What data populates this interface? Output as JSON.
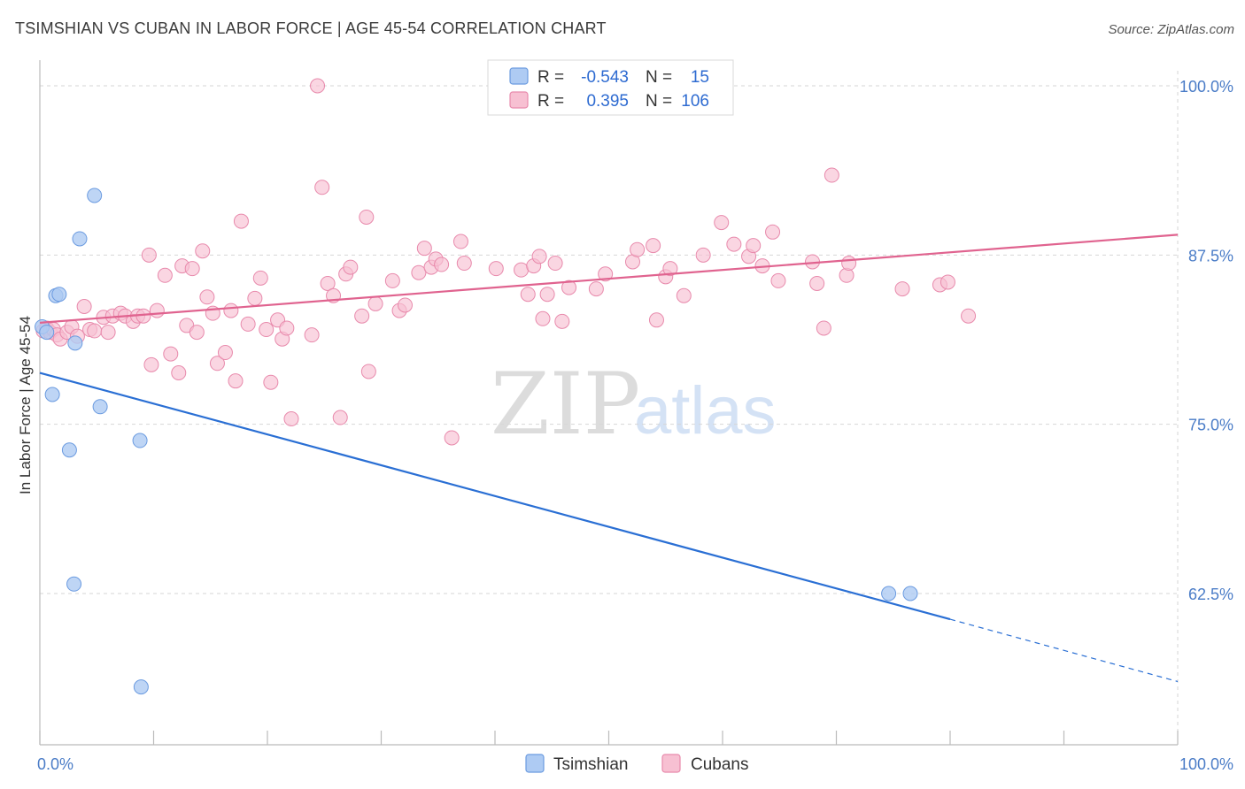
{
  "title": "TSIMSHIAN VS CUBAN IN LABOR FORCE | AGE 45-54 CORRELATION CHART",
  "source": "Source: ZipAtlas.com",
  "watermark": {
    "zip": "ZIP",
    "atlas": "atlas"
  },
  "colors": {
    "tsimshian_fill": "#aecbf3",
    "tsimshian_stroke": "#6b9be0",
    "tsimshian_line": "#2a6fd4",
    "cubans_fill": "#f7c0d2",
    "cubans_stroke": "#e88aac",
    "cubans_line": "#e0638f",
    "tick_text": "#4a7cc7"
  },
  "legend": {
    "r_label": "R =",
    "n_label": "N =",
    "rows": [
      {
        "series": "Tsimshian",
        "r": "-0.543",
        "n": "15"
      },
      {
        "series": "Cubans",
        "r": "0.395",
        "n": "106"
      }
    ]
  },
  "bottom_legend": [
    "Tsimshian",
    "Cubans"
  ],
  "chart_data": {
    "type": "scatter",
    "title": "TSIMSHIAN VS CUBAN IN LABOR FORCE | AGE 45-54 CORRELATION CHART",
    "xlabel": "",
    "ylabel": "In Labor Force | Age 45-54",
    "xlim": [
      0,
      100
    ],
    "ylim": [
      51.5,
      102.5
    ],
    "x_tick_labels": [
      "0.0%",
      "100.0%"
    ],
    "y_ticks": [
      62.5,
      75.0,
      87.5,
      100.0
    ],
    "y_tick_labels": [
      "62.5%",
      "75.0%",
      "87.5%",
      "100.0%"
    ],
    "grid": true,
    "legend_position": "top-center",
    "series": [
      {
        "name": "Tsimshian",
        "points": [
          [
            0.2,
            82.2
          ],
          [
            0.6,
            81.8
          ],
          [
            1.1,
            77.2
          ],
          [
            1.4,
            84.5
          ],
          [
            1.7,
            84.6
          ],
          [
            2.6,
            73.1
          ],
          [
            3.1,
            81.0
          ],
          [
            3.5,
            88.7
          ],
          [
            4.8,
            91.9
          ],
          [
            5.3,
            76.3
          ],
          [
            3.0,
            63.2
          ],
          [
            8.9,
            55.6
          ],
          [
            8.8,
            73.8
          ],
          [
            74.6,
            62.5
          ],
          [
            76.5,
            62.5
          ]
        ],
        "trend": {
          "x0": 0,
          "y0": 78.8,
          "x1": 80,
          "y1": 60.6,
          "dash_to_x": 100,
          "dash_to_y": 56.0
        }
      },
      {
        "name": "Cubans",
        "points": [
          [
            0.3,
            81.9
          ],
          [
            0.6,
            82.1
          ],
          [
            0.9,
            81.8
          ],
          [
            1.2,
            82.0
          ],
          [
            1.5,
            81.6
          ],
          [
            1.8,
            81.3
          ],
          [
            2.4,
            81.8
          ],
          [
            2.8,
            82.2
          ],
          [
            3.3,
            81.5
          ],
          [
            3.9,
            83.7
          ],
          [
            4.4,
            82.0
          ],
          [
            4.8,
            81.9
          ],
          [
            5.6,
            82.9
          ],
          [
            6.0,
            81.8
          ],
          [
            6.4,
            83.0
          ],
          [
            7.1,
            83.2
          ],
          [
            7.5,
            83.0
          ],
          [
            8.2,
            82.6
          ],
          [
            8.6,
            83.0
          ],
          [
            9.1,
            83.0
          ],
          [
            9.6,
            87.5
          ],
          [
            9.8,
            79.4
          ],
          [
            10.3,
            83.4
          ],
          [
            11.0,
            86.0
          ],
          [
            11.5,
            80.2
          ],
          [
            12.2,
            78.8
          ],
          [
            12.5,
            86.7
          ],
          [
            12.9,
            82.3
          ],
          [
            13.4,
            86.5
          ],
          [
            13.8,
            81.8
          ],
          [
            14.3,
            87.8
          ],
          [
            14.7,
            84.4
          ],
          [
            15.2,
            83.2
          ],
          [
            15.6,
            79.5
          ],
          [
            16.3,
            80.3
          ],
          [
            16.8,
            83.4
          ],
          [
            17.2,
            78.2
          ],
          [
            17.7,
            90.0
          ],
          [
            18.3,
            82.4
          ],
          [
            18.9,
            84.3
          ],
          [
            19.4,
            85.8
          ],
          [
            19.9,
            82.0
          ],
          [
            20.3,
            78.1
          ],
          [
            20.9,
            82.7
          ],
          [
            21.3,
            81.3
          ],
          [
            21.7,
            82.1
          ],
          [
            22.1,
            75.4
          ],
          [
            23.9,
            81.6
          ],
          [
            24.4,
            100.0
          ],
          [
            24.8,
            92.5
          ],
          [
            25.3,
            85.4
          ],
          [
            25.8,
            84.5
          ],
          [
            26.4,
            75.5
          ],
          [
            26.9,
            86.1
          ],
          [
            27.3,
            86.6
          ],
          [
            28.3,
            83.0
          ],
          [
            28.7,
            90.3
          ],
          [
            28.9,
            78.9
          ],
          [
            29.5,
            83.9
          ],
          [
            31.0,
            85.6
          ],
          [
            31.6,
            83.4
          ],
          [
            32.1,
            83.8
          ],
          [
            33.3,
            86.2
          ],
          [
            33.8,
            88.0
          ],
          [
            34.4,
            86.6
          ],
          [
            34.8,
            87.2
          ],
          [
            35.3,
            86.8
          ],
          [
            36.2,
            74.0
          ],
          [
            37.0,
            88.5
          ],
          [
            37.3,
            86.9
          ],
          [
            40.1,
            86.5
          ],
          [
            42.3,
            86.4
          ],
          [
            42.9,
            84.6
          ],
          [
            43.4,
            86.7
          ],
          [
            43.9,
            87.4
          ],
          [
            44.2,
            82.8
          ],
          [
            44.6,
            84.6
          ],
          [
            45.3,
            86.9
          ],
          [
            45.9,
            82.6
          ],
          [
            46.5,
            85.1
          ],
          [
            48.9,
            85.0
          ],
          [
            49.7,
            86.1
          ],
          [
            52.1,
            87.0
          ],
          [
            52.5,
            87.9
          ],
          [
            53.9,
            88.2
          ],
          [
            54.2,
            82.7
          ],
          [
            55.0,
            85.9
          ],
          [
            55.4,
            86.5
          ],
          [
            56.6,
            84.5
          ],
          [
            58.3,
            87.5
          ],
          [
            59.9,
            89.9
          ],
          [
            61.0,
            88.3
          ],
          [
            62.3,
            87.4
          ],
          [
            62.7,
            88.2
          ],
          [
            63.5,
            86.7
          ],
          [
            64.4,
            89.2
          ],
          [
            64.9,
            85.6
          ],
          [
            67.9,
            87.0
          ],
          [
            68.3,
            85.4
          ],
          [
            68.9,
            82.1
          ],
          [
            69.6,
            93.4
          ],
          [
            70.9,
            86.0
          ],
          [
            71.1,
            86.9
          ],
          [
            75.8,
            85.0
          ],
          [
            79.1,
            85.3
          ],
          [
            79.8,
            85.5
          ],
          [
            81.6,
            83.0
          ]
        ],
        "trend": {
          "x0": 0,
          "y0": 82.5,
          "x1": 100,
          "y1": 89.0
        }
      }
    ]
  }
}
